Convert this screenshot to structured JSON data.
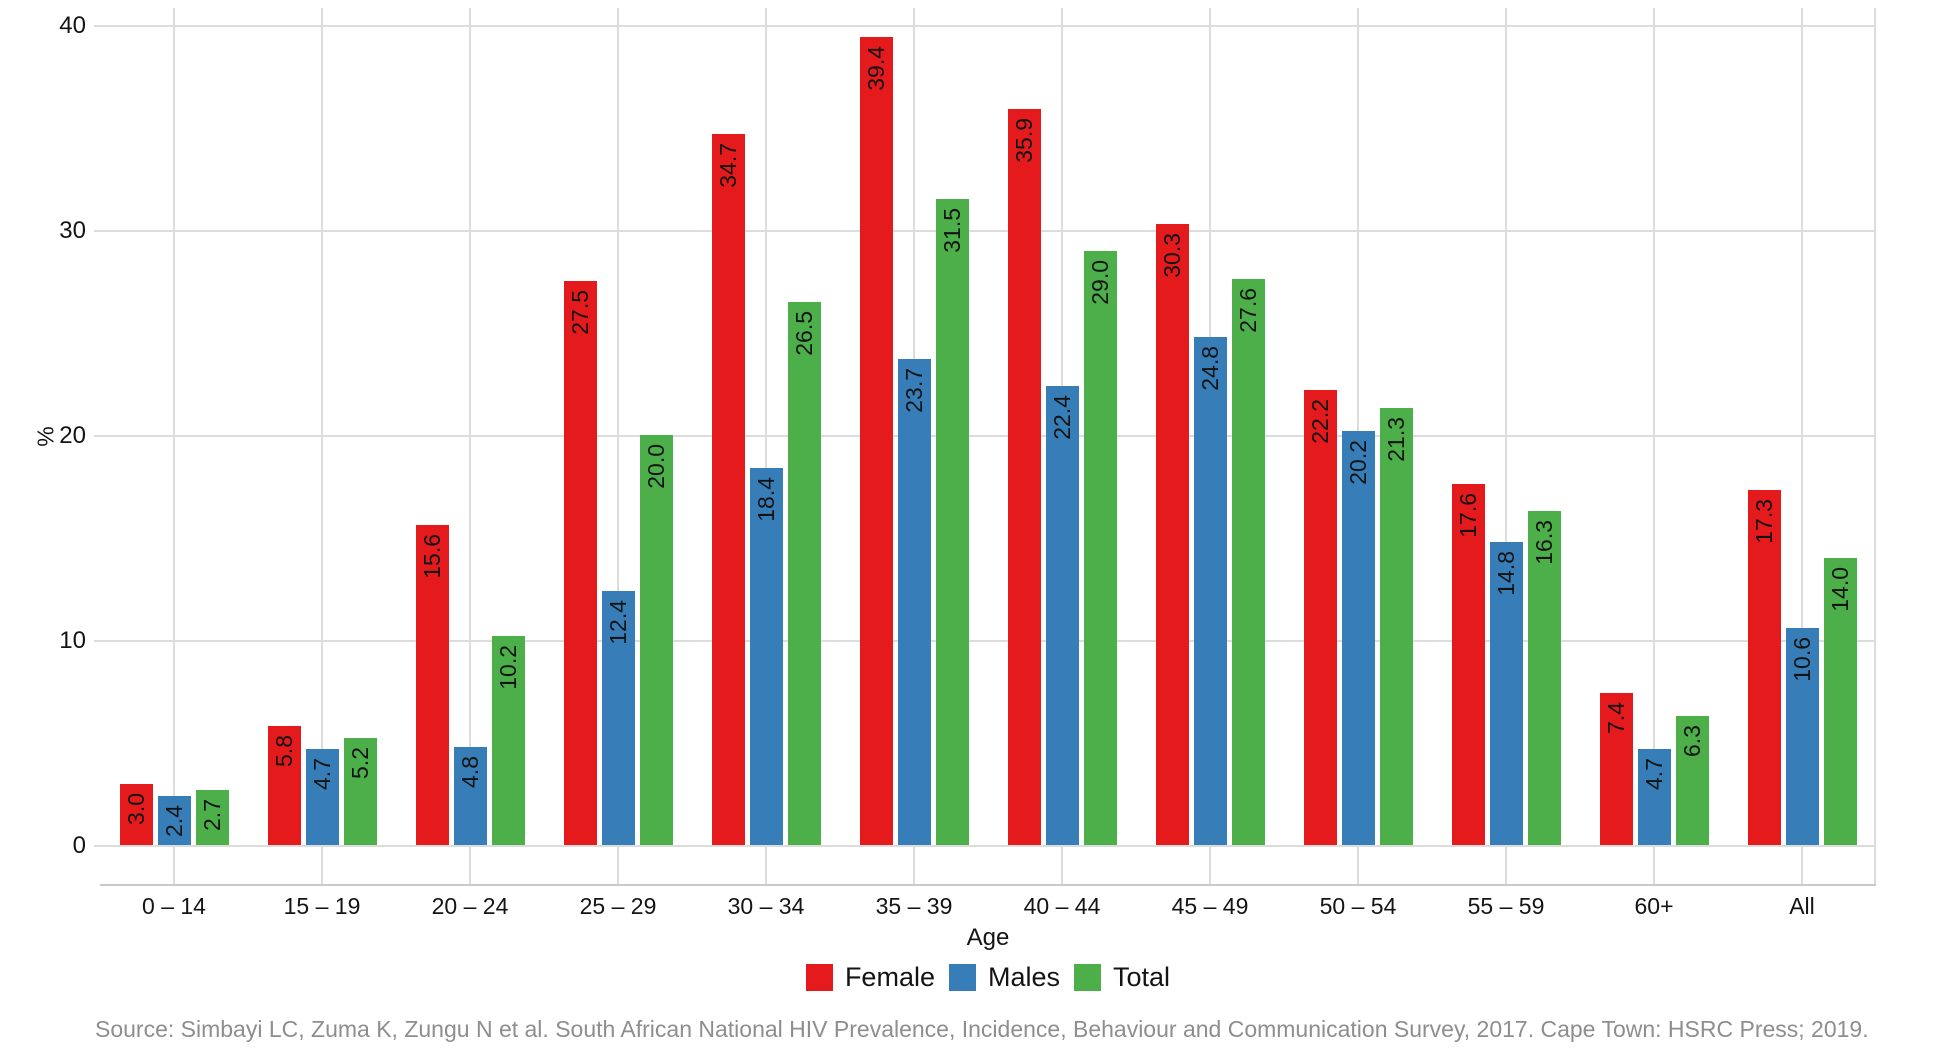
{
  "chart_data": {
    "type": "bar",
    "title": "",
    "categories": [
      "0 – 14",
      "15 – 19",
      "20 – 24",
      "25 – 29",
      "30 – 34",
      "35 – 39",
      "40 – 44",
      "45 – 49",
      "50 – 54",
      "55 – 59",
      "60+",
      "All"
    ],
    "series": [
      {
        "name": "Female",
        "color": "#E41A1C",
        "values": [
          3.0,
          5.8,
          15.6,
          27.5,
          34.7,
          39.4,
          35.9,
          30.3,
          22.2,
          17.6,
          7.4,
          17.3
        ]
      },
      {
        "name": "Males",
        "color": "#377EB8",
        "values": [
          2.4,
          4.7,
          4.8,
          12.4,
          18.4,
          23.7,
          22.4,
          24.8,
          20.2,
          14.8,
          4.7,
          10.6
        ]
      },
      {
        "name": "Total",
        "color": "#4DAF4A",
        "values": [
          2.7,
          5.2,
          10.2,
          20.0,
          26.5,
          31.5,
          29.0,
          27.6,
          21.3,
          16.3,
          6.3,
          14.0
        ]
      }
    ],
    "xlabel": "Age",
    "ylabel": "%",
    "ylim": [
      0,
      40
    ],
    "yticks": [
      0,
      10,
      20,
      30,
      40
    ],
    "bar_value_labels": true,
    "value_label_format": "1-decimal",
    "grid": true,
    "gridline_color": "#dcdcdc",
    "legend_position": "bottom"
  },
  "source_note": "Source: Simbayi LC, Zuma K, Zungu N et al. South African National HIV Prevalence, Incidence, Behaviour and Communication Survey, 2017. Cape Town: HSRC Press; 2019."
}
